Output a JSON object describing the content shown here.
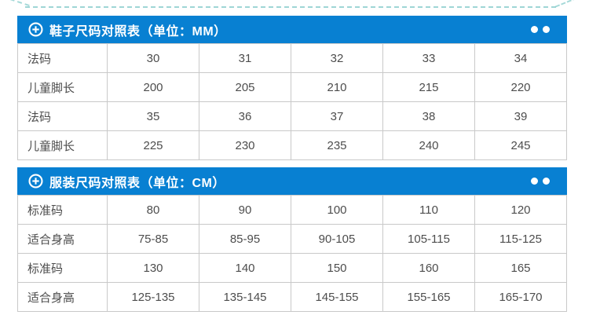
{
  "page": {
    "accent_blue": "#0880d2",
    "border_color": "#c9c9c9",
    "stitch_color": "#8fd0cf",
    "background": "#ffffff"
  },
  "tables": [
    {
      "title": "鞋子尺码对照表（单位：MM）",
      "icon": "plus-circle-icon",
      "rows": [
        {
          "label": "法码",
          "values": [
            "30",
            "31",
            "32",
            "33",
            "34"
          ]
        },
        {
          "label": "儿童脚长",
          "values": [
            "200",
            "205",
            "210",
            "215",
            "220"
          ]
        },
        {
          "label": "法码",
          "values": [
            "35",
            "36",
            "37",
            "38",
            "39"
          ]
        },
        {
          "label": "儿童脚长",
          "values": [
            "225",
            "230",
            "235",
            "240",
            "245"
          ]
        }
      ]
    },
    {
      "title": "服装尺码对照表（单位：CM）",
      "icon": "plus-circle-icon",
      "rows": [
        {
          "label": "标准码",
          "values": [
            "80",
            "90",
            "100",
            "110",
            "120"
          ]
        },
        {
          "label": "适合身高",
          "values": [
            "75-85",
            "85-95",
            "90-105",
            "105-115",
            "115-125"
          ]
        },
        {
          "label": "标准码",
          "values": [
            "130",
            "140",
            "150",
            "160",
            "165"
          ]
        },
        {
          "label": "适合身高",
          "values": [
            "125-135",
            "135-145",
            "145-155",
            "155-165",
            "165-170"
          ]
        }
      ]
    }
  ]
}
